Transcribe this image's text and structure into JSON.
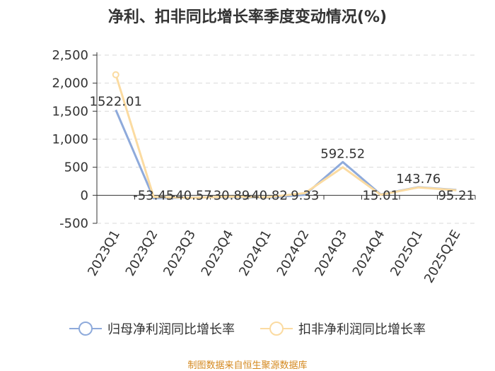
{
  "chart_data": {
    "type": "line",
    "title": "净利、扣非同比增长率季度变动情况(%)",
    "categories": [
      "2023Q1",
      "2023Q2",
      "2023Q3",
      "2023Q4",
      "2024Q1",
      "2024Q2",
      "2024Q3",
      "2024Q4",
      "2025Q1",
      "2025Q2E"
    ],
    "series": [
      {
        "name": "归母净利润同比增长率",
        "color": "#8eaadb",
        "values": [
          1522.01,
          -53.45,
          -40.57,
          -30.89,
          -40.82,
          9.33,
          592.52,
          15.01,
          143.76,
          95.21
        ]
      },
      {
        "name": "扣非净利润同比增长率",
        "color": "#fbdba1",
        "values": [
          2150,
          -30,
          -45,
          -25,
          -35,
          40,
          500,
          10,
          140,
          90
        ]
      }
    ],
    "data_labels": [
      "1522.01",
      "-53.45",
      "-40.57",
      "-30.89",
      "-40.82",
      "9.33",
      "592.52",
      "15.01",
      "143.76",
      "95.21"
    ],
    "yticks": [
      "2,500",
      "2,000",
      "1,500",
      "1,000",
      "500",
      "0",
      "-500"
    ],
    "ylim": [
      -500,
      2500
    ],
    "grid": true,
    "legend_position": "bottom"
  },
  "source": "制图数据来自恒生聚源数据库"
}
